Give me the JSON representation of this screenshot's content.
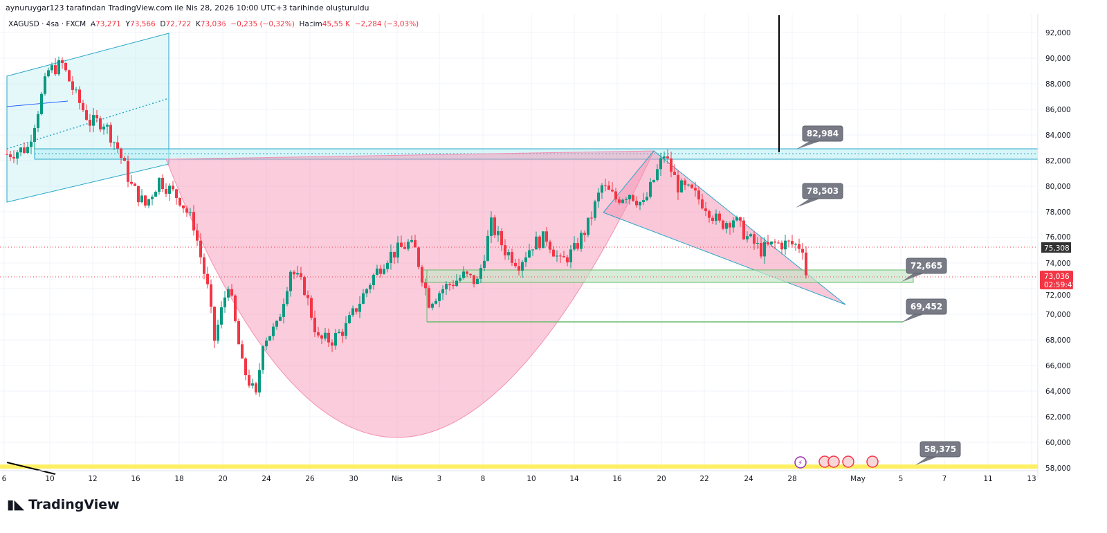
{
  "header": {
    "credit": "aynuruygar123 tarafından TradingView.com ile Nis 28, 2026 10:00 UTC+3 tarihinde oluşturuldu"
  },
  "legend": {
    "symbol": "XAGUSD · 4sa · FXCM",
    "o_label": "A",
    "o": "73,271",
    "h_label": "Y",
    "h": "73,566",
    "l_label": "D",
    "l": "72,722",
    "c_label": "K",
    "c": "73,036",
    "change": "−0,235 (−0,32%)",
    "vol_label": "Hacim",
    "vol": "45,55 K",
    "vol_change": "−2,284 (−3,03%)"
  },
  "brand": "TradingView",
  "colors": {
    "up": "#089981",
    "down": "#f23645",
    "cup": "#f8bbd0",
    "zone": "#b2ebf2",
    "box": "#c8e6c9",
    "yellow": "#ffeb3b"
  },
  "chart_data": {
    "type": "candlestick",
    "symbol": "XAGUSD",
    "ylim": [
      58,
      92.5
    ],
    "y_ticks": [
      "92,000",
      "90,000",
      "88,000",
      "86,000",
      "84,000",
      "82,000",
      "80,000",
      "78,000",
      "76,000",
      "74,000",
      "72,000",
      "70,000",
      "68,000",
      "66,000",
      "64,000",
      "62,000",
      "60,000",
      "58,000"
    ],
    "x_ticks": [
      "6",
      "10",
      "12",
      "16",
      "18",
      "20",
      "24",
      "26",
      "30",
      "Nis",
      "3",
      "8",
      "10",
      "14",
      "16",
      "20",
      "22",
      "24",
      "28",
      "May",
      "5",
      "7",
      "11",
      "13"
    ],
    "price_path": [
      [
        0,
        82.5
      ],
      [
        3,
        83
      ],
      [
        6,
        89
      ],
      [
        8,
        89.5
      ],
      [
        10,
        87
      ],
      [
        12,
        85
      ],
      [
        14,
        85
      ],
      [
        16,
        83
      ],
      [
        18,
        80
      ],
      [
        20,
        78.5
      ],
      [
        22,
        80.5
      ],
      [
        25,
        79
      ],
      [
        27,
        77
      ],
      [
        29,
        72
      ],
      [
        30,
        68
      ],
      [
        32,
        72.5
      ],
      [
        34,
        66
      ],
      [
        36,
        63.5
      ],
      [
        37,
        68
      ],
      [
        39,
        69
      ],
      [
        41,
        73.5
      ],
      [
        43,
        72
      ],
      [
        45,
        68
      ],
      [
        47,
        68
      ],
      [
        49,
        69
      ],
      [
        51,
        71
      ],
      [
        53,
        73
      ],
      [
        55,
        74.5
      ],
      [
        58,
        75.5
      ],
      [
        59,
        75
      ],
      [
        61,
        71
      ],
      [
        63,
        72
      ],
      [
        66,
        73
      ],
      [
        68,
        72.5
      ],
      [
        70,
        77
      ],
      [
        72,
        75
      ],
      [
        74,
        74
      ],
      [
        76,
        75.5
      ],
      [
        78,
        76
      ],
      [
        80,
        74
      ],
      [
        82,
        75
      ],
      [
        84,
        77
      ],
      [
        86,
        80
      ],
      [
        88,
        79
      ],
      [
        90,
        79.5
      ],
      [
        92,
        78.5
      ],
      [
        95,
        82.5
      ],
      [
        97,
        80
      ],
      [
        99,
        79.5
      ],
      [
        101,
        78.5
      ],
      [
        103,
        77
      ],
      [
        105,
        77.5
      ],
      [
        107,
        76
      ],
      [
        109,
        75
      ],
      [
        111,
        75.5
      ],
      [
        113,
        75.5
      ],
      [
        115,
        75.3
      ],
      [
        116,
        73.036
      ]
    ],
    "last_price": "73,036",
    "countdown": "02:59:45",
    "prev_close_marker": "75,308",
    "annotations": [
      "82,984",
      "78,503",
      "72,665",
      "69,452",
      "58,375"
    ]
  }
}
